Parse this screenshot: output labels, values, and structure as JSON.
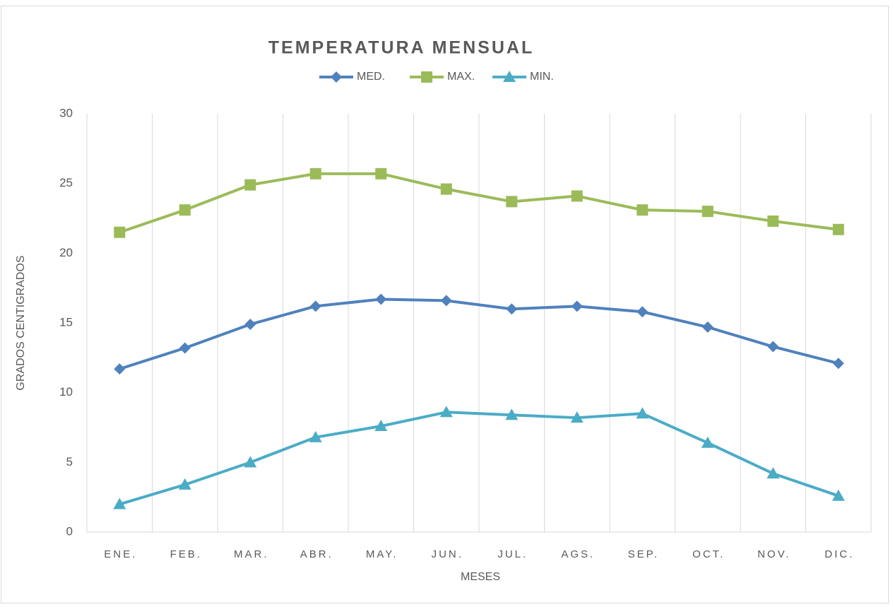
{
  "chart_data": {
    "type": "line",
    "title": "TEMPERATURA MENSUAL",
    "x_label": "MESES",
    "y_label": "GRADOS CENTIGRADOS",
    "categories": [
      "ENE.",
      "FEB.",
      "MAR.",
      "ABR.",
      "MAY.",
      "JUN.",
      "JUL.",
      "AGS.",
      "SEP.",
      "OCT.",
      "NOV.",
      "DIC."
    ],
    "series": [
      {
        "name": "MED.",
        "color": "#4f81bd",
        "marker": "diamond",
        "values": [
          11.7,
          13.2,
          14.9,
          16.2,
          16.7,
          16.6,
          16.0,
          16.2,
          15.8,
          14.7,
          13.3,
          12.1
        ]
      },
      {
        "name": "MAX.",
        "color": "#9bbb59",
        "marker": "square",
        "values": [
          21.5,
          23.1,
          24.9,
          25.7,
          25.7,
          24.6,
          23.7,
          24.1,
          23.1,
          23.0,
          22.3,
          21.7
        ]
      },
      {
        "name": "MIN.",
        "color": "#4bacc6",
        "marker": "triangle",
        "values": [
          2.0,
          3.4,
          5.0,
          6.8,
          7.6,
          8.6,
          8.4,
          8.2,
          8.5,
          6.4,
          4.2,
          2.6
        ]
      }
    ],
    "ylim": [
      0,
      30
    ],
    "yticks": [
      0,
      5,
      10,
      15,
      20,
      25,
      30
    ],
    "category_grid": true,
    "legend": "top"
  }
}
